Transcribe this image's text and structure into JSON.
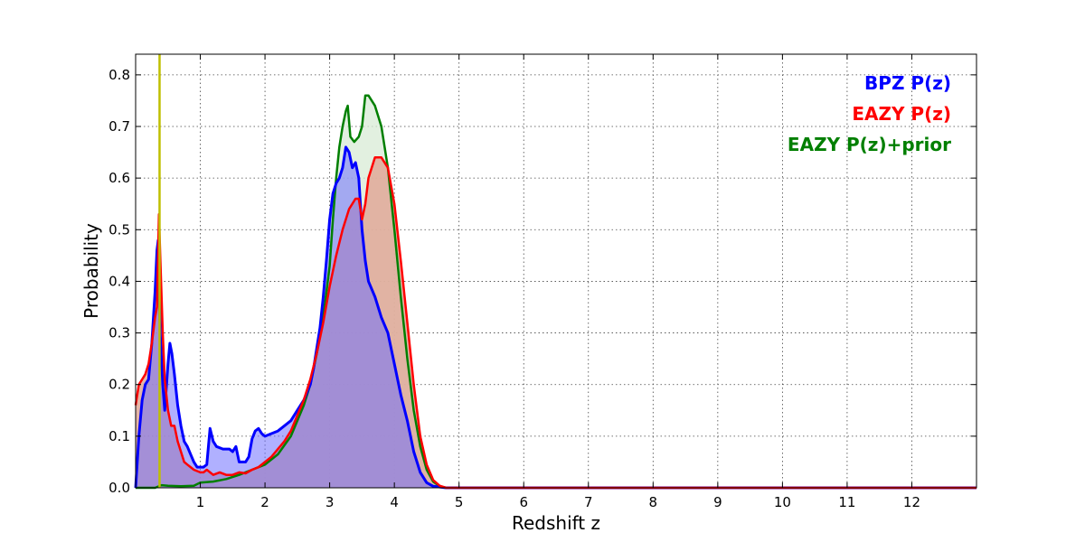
{
  "chart_data": {
    "type": "area",
    "title": "",
    "xlabel": "Redshift z",
    "ylabel": "Probability",
    "xlim": [
      0,
      13
    ],
    "ylim": [
      0,
      0.84
    ],
    "x_ticks": [
      "1",
      "2",
      "3",
      "4",
      "5",
      "6",
      "7",
      "8",
      "9",
      "10",
      "11",
      "12"
    ],
    "y_ticks": [
      "0.0",
      "0.1",
      "0.2",
      "0.3",
      "0.4",
      "0.5",
      "0.6",
      "0.7",
      "0.8"
    ],
    "grid": true,
    "legend_position": "top-right",
    "vertical_line": {
      "x": 0.37,
      "color": "#bfbf00"
    },
    "series": [
      {
        "name": "BPZ P(z)",
        "color": "#0000ff",
        "fill": "#7070ff",
        "points": [
          [
            0.0,
            0.0
          ],
          [
            0.05,
            0.1
          ],
          [
            0.1,
            0.17
          ],
          [
            0.15,
            0.2
          ],
          [
            0.2,
            0.21
          ],
          [
            0.25,
            0.28
          ],
          [
            0.3,
            0.38
          ],
          [
            0.33,
            0.46
          ],
          [
            0.35,
            0.48
          ],
          [
            0.38,
            0.3
          ],
          [
            0.42,
            0.2
          ],
          [
            0.45,
            0.15
          ],
          [
            0.5,
            0.24
          ],
          [
            0.53,
            0.28
          ],
          [
            0.56,
            0.26
          ],
          [
            0.6,
            0.22
          ],
          [
            0.65,
            0.16
          ],
          [
            0.7,
            0.12
          ],
          [
            0.75,
            0.09
          ],
          [
            0.8,
            0.08
          ],
          [
            0.85,
            0.065
          ],
          [
            0.9,
            0.05
          ],
          [
            0.95,
            0.04
          ],
          [
            1.0,
            0.04
          ],
          [
            1.05,
            0.04
          ],
          [
            1.1,
            0.045
          ],
          [
            1.15,
            0.115
          ],
          [
            1.2,
            0.09
          ],
          [
            1.25,
            0.08
          ],
          [
            1.35,
            0.075
          ],
          [
            1.45,
            0.075
          ],
          [
            1.5,
            0.07
          ],
          [
            1.55,
            0.08
          ],
          [
            1.6,
            0.05
          ],
          [
            1.7,
            0.05
          ],
          [
            1.75,
            0.06
          ],
          [
            1.8,
            0.095
          ],
          [
            1.85,
            0.11
          ],
          [
            1.9,
            0.115
          ],
          [
            1.95,
            0.105
          ],
          [
            2.0,
            0.1
          ],
          [
            2.1,
            0.105
          ],
          [
            2.2,
            0.11
          ],
          [
            2.3,
            0.12
          ],
          [
            2.4,
            0.13
          ],
          [
            2.5,
            0.15
          ],
          [
            2.6,
            0.17
          ],
          [
            2.7,
            0.2
          ],
          [
            2.75,
            0.23
          ],
          [
            2.8,
            0.27
          ],
          [
            2.85,
            0.31
          ],
          [
            2.9,
            0.37
          ],
          [
            2.95,
            0.44
          ],
          [
            3.0,
            0.52
          ],
          [
            3.05,
            0.57
          ],
          [
            3.1,
            0.59
          ],
          [
            3.15,
            0.6
          ],
          [
            3.2,
            0.62
          ],
          [
            3.25,
            0.66
          ],
          [
            3.3,
            0.65
          ],
          [
            3.35,
            0.62
          ],
          [
            3.4,
            0.63
          ],
          [
            3.45,
            0.6
          ],
          [
            3.5,
            0.5
          ],
          [
            3.55,
            0.44
          ],
          [
            3.6,
            0.4
          ],
          [
            3.7,
            0.37
          ],
          [
            3.8,
            0.33
          ],
          [
            3.9,
            0.3
          ],
          [
            4.0,
            0.24
          ],
          [
            4.1,
            0.18
          ],
          [
            4.2,
            0.13
          ],
          [
            4.3,
            0.07
          ],
          [
            4.4,
            0.03
          ],
          [
            4.5,
            0.01
          ],
          [
            4.6,
            0.003
          ],
          [
            4.8,
            0.0
          ],
          [
            13.0,
            0.0
          ]
        ]
      },
      {
        "name": "EAZY P(z)",
        "color": "#ff0000",
        "fill": "#e0a898",
        "points": [
          [
            0.0,
            0.16
          ],
          [
            0.05,
            0.2
          ],
          [
            0.1,
            0.21
          ],
          [
            0.15,
            0.22
          ],
          [
            0.2,
            0.24
          ],
          [
            0.25,
            0.28
          ],
          [
            0.3,
            0.33
          ],
          [
            0.33,
            0.35
          ],
          [
            0.36,
            0.53
          ],
          [
            0.38,
            0.45
          ],
          [
            0.42,
            0.3
          ],
          [
            0.45,
            0.21
          ],
          [
            0.5,
            0.15
          ],
          [
            0.55,
            0.12
          ],
          [
            0.6,
            0.12
          ],
          [
            0.65,
            0.09
          ],
          [
            0.7,
            0.07
          ],
          [
            0.75,
            0.05
          ],
          [
            0.8,
            0.045
          ],
          [
            0.85,
            0.04
          ],
          [
            0.9,
            0.035
          ],
          [
            1.0,
            0.03
          ],
          [
            1.05,
            0.03
          ],
          [
            1.1,
            0.035
          ],
          [
            1.15,
            0.03
          ],
          [
            1.2,
            0.025
          ],
          [
            1.3,
            0.03
          ],
          [
            1.4,
            0.025
          ],
          [
            1.5,
            0.025
          ],
          [
            1.6,
            0.03
          ],
          [
            1.7,
            0.028
          ],
          [
            1.8,
            0.035
          ],
          [
            1.9,
            0.04
          ],
          [
            2.0,
            0.05
          ],
          [
            2.1,
            0.06
          ],
          [
            2.2,
            0.075
          ],
          [
            2.3,
            0.09
          ],
          [
            2.4,
            0.11
          ],
          [
            2.5,
            0.14
          ],
          [
            2.6,
            0.17
          ],
          [
            2.7,
            0.21
          ],
          [
            2.8,
            0.26
          ],
          [
            2.9,
            0.32
          ],
          [
            3.0,
            0.39
          ],
          [
            3.1,
            0.45
          ],
          [
            3.2,
            0.5
          ],
          [
            3.3,
            0.54
          ],
          [
            3.4,
            0.56
          ],
          [
            3.45,
            0.56
          ],
          [
            3.5,
            0.52
          ],
          [
            3.55,
            0.55
          ],
          [
            3.6,
            0.6
          ],
          [
            3.7,
            0.64
          ],
          [
            3.8,
            0.64
          ],
          [
            3.9,
            0.62
          ],
          [
            4.0,
            0.55
          ],
          [
            4.1,
            0.44
          ],
          [
            4.2,
            0.32
          ],
          [
            4.3,
            0.2
          ],
          [
            4.4,
            0.1
          ],
          [
            4.5,
            0.045
          ],
          [
            4.6,
            0.015
          ],
          [
            4.7,
            0.004
          ],
          [
            4.8,
            0.0
          ],
          [
            13.0,
            0.0
          ]
        ]
      },
      {
        "name": "EAZY P(z)+prior",
        "color": "#007f00",
        "fill": "#d8ebd6",
        "points": [
          [
            0.0,
            0.0
          ],
          [
            0.3,
            0.0
          ],
          [
            0.4,
            0.005
          ],
          [
            0.5,
            0.004
          ],
          [
            0.7,
            0.003
          ],
          [
            0.9,
            0.004
          ],
          [
            1.0,
            0.01
          ],
          [
            1.2,
            0.012
          ],
          [
            1.4,
            0.017
          ],
          [
            1.6,
            0.025
          ],
          [
            1.8,
            0.035
          ],
          [
            2.0,
            0.045
          ],
          [
            2.2,
            0.065
          ],
          [
            2.4,
            0.1
          ],
          [
            2.6,
            0.16
          ],
          [
            2.7,
            0.2
          ],
          [
            2.8,
            0.26
          ],
          [
            2.9,
            0.33
          ],
          [
            3.0,
            0.43
          ],
          [
            3.05,
            0.52
          ],
          [
            3.1,
            0.6
          ],
          [
            3.15,
            0.66
          ],
          [
            3.2,
            0.7
          ],
          [
            3.25,
            0.73
          ],
          [
            3.28,
            0.74
          ],
          [
            3.32,
            0.68
          ],
          [
            3.38,
            0.67
          ],
          [
            3.45,
            0.68
          ],
          [
            3.5,
            0.7
          ],
          [
            3.55,
            0.76
          ],
          [
            3.6,
            0.76
          ],
          [
            3.7,
            0.74
          ],
          [
            3.8,
            0.7
          ],
          [
            3.9,
            0.62
          ],
          [
            4.0,
            0.5
          ],
          [
            4.1,
            0.37
          ],
          [
            4.2,
            0.25
          ],
          [
            4.3,
            0.15
          ],
          [
            4.4,
            0.08
          ],
          [
            4.5,
            0.035
          ],
          [
            4.6,
            0.012
          ],
          [
            4.7,
            0.003
          ],
          [
            4.8,
            0.0
          ],
          [
            13.0,
            0.0
          ]
        ]
      }
    ]
  }
}
